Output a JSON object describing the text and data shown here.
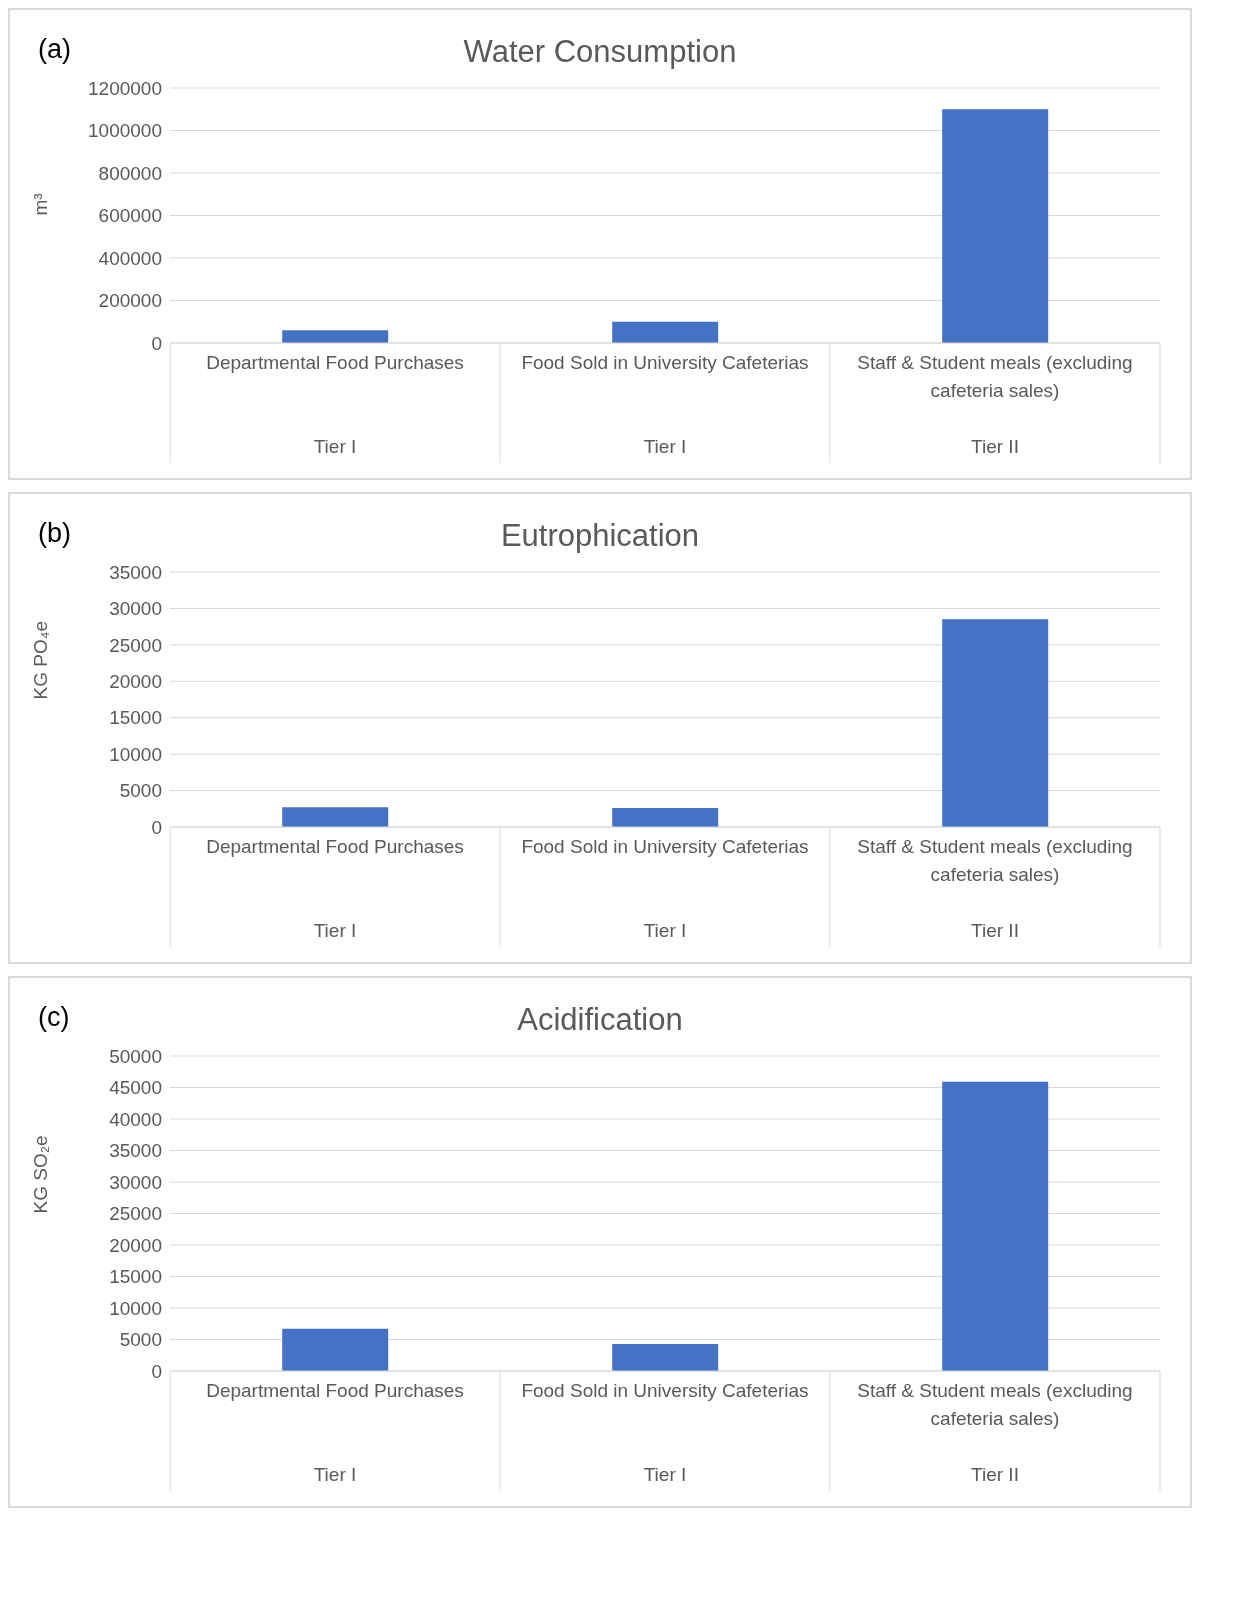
{
  "chart_data": [
    {
      "type": "bar",
      "title": "Water Consumption",
      "ylabel": "m³",
      "categories": [
        "Departmental Food Purchases",
        "Food Sold in University Cafeterias",
        "Staff & Student meals (excluding cafeteria sales)"
      ],
      "values": [
        60000,
        100000,
        1100000
      ],
      "color": "#4472c4",
      "ylim": [
        0,
        1200000
      ],
      "yticks": [
        0,
        200000,
        400000,
        600000,
        800000,
        1000000,
        1200000
      ],
      "grid": "y",
      "legend": false,
      "annotations": [
        "(a)",
        "Tier I",
        "Tier I",
        "Tier II"
      ]
    },
    {
      "type": "bar",
      "title": "Eutrophication",
      "ylabel": "KG PO₄e",
      "categories": [
        "Departmental Food Purchases",
        "Food Sold in University Cafeterias",
        "Staff & Student meals (excluding cafeteria sales)"
      ],
      "values": [
        2700,
        2600,
        28500
      ],
      "color": "#4472c4",
      "ylim": [
        0,
        35000
      ],
      "yticks": [
        0,
        5000,
        10000,
        15000,
        20000,
        25000,
        30000,
        35000
      ],
      "grid": "y",
      "legend": false,
      "annotations": [
        "(b)",
        "Tier I",
        "Tier I",
        "Tier II"
      ]
    },
    {
      "type": "bar",
      "title": "Acidification",
      "ylabel": "KG SO₂e",
      "categories": [
        "Departmental Food Purchases",
        "Food Sold in University Cafeterias",
        "Staff & Student meals (excluding cafeteria sales)"
      ],
      "values": [
        6700,
        4300,
        45900
      ],
      "color": "#4472c4",
      "ylim": [
        0,
        50000
      ],
      "yticks": [
        0,
        5000,
        10000,
        15000,
        20000,
        25000,
        30000,
        35000,
        40000,
        45000,
        50000
      ],
      "grid": "y",
      "legend": false,
      "annotations": [
        "(c)",
        "Tier I",
        "Tier I",
        "Tier II"
      ]
    }
  ]
}
